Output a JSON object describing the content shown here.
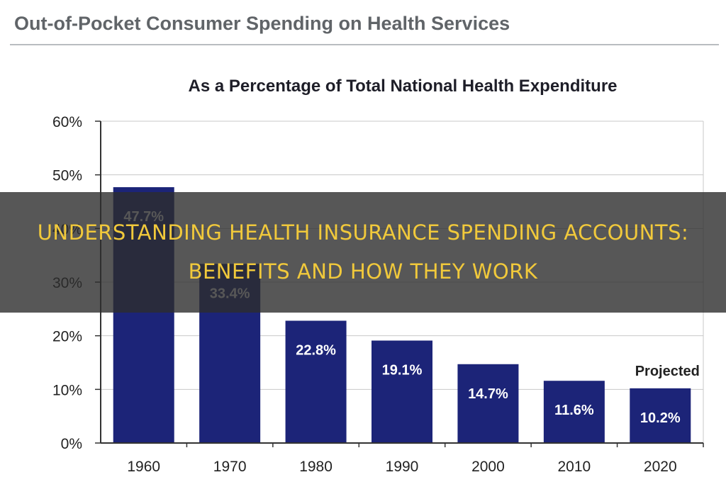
{
  "figure_title": "Out-of-Pocket Consumer Spending on Health Services",
  "overlay": {
    "headline": "Understanding Health Insurance Spending Accounts: Benefits And How They Work"
  },
  "colors": {
    "bar": "#1c2478",
    "bar_label": "#ffffff",
    "axis": "#333333",
    "grid": "#c8c8c8",
    "banner_text": "#f1c93b"
  },
  "chart_data": {
    "type": "bar",
    "title": "As a Percentage of Total National Health Expenditure",
    "xlabel": "",
    "ylabel": "",
    "categories": [
      "1960",
      "1970",
      "1980",
      "1990",
      "2000",
      "2010",
      "2020"
    ],
    "values": [
      47.7,
      33.4,
      22.8,
      19.1,
      14.7,
      11.6,
      10.2
    ],
    "data_labels": [
      "47.7%",
      "33.4%",
      "22.8%",
      "19.1%",
      "14.7%",
      "11.6%",
      "10.2%"
    ],
    "ylim": [
      0,
      60
    ],
    "yticks": [
      0,
      10,
      20,
      30,
      40,
      50,
      60
    ],
    "ytick_labels": [
      "0%",
      "10%",
      "20%",
      "30%",
      "40%",
      "50%",
      "60%"
    ],
    "grid": true,
    "annotations": [
      {
        "text": "Projected",
        "category": "2020"
      }
    ]
  }
}
